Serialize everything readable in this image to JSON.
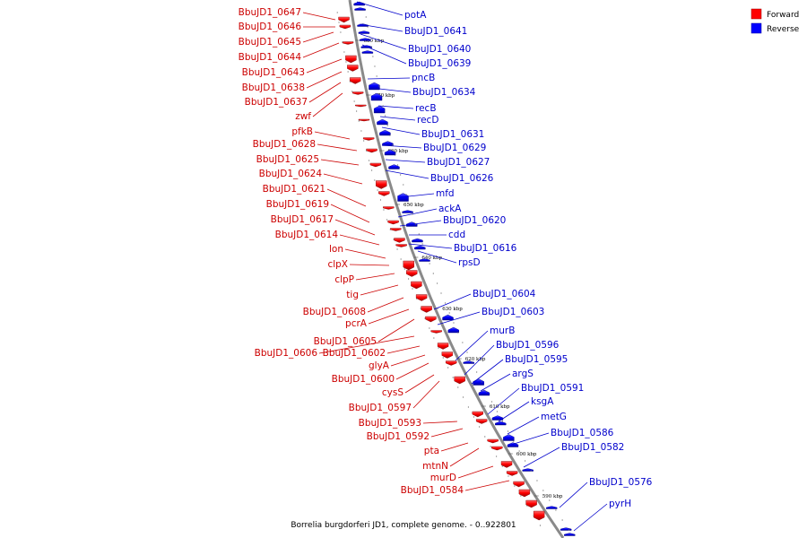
{
  "caption": "Borrelia burgdorferi JD1, complete genome. - 0..922801",
  "legend": [
    {
      "label": "Forward",
      "color": "#ff0000"
    },
    {
      "label": "Reverse",
      "color": "#0000ff"
    }
  ],
  "colors": {
    "forward": "#cc0000",
    "reverse": "#0000cc",
    "backbone": "#808080"
  },
  "ticks": [
    "680 kbp",
    "670 kbp",
    "660 kbp",
    "650 kbp",
    "640 kbp",
    "630 kbp",
    "620 kbp",
    "610 kbp",
    "600 kbp",
    "590 kbp"
  ],
  "forward_genes": [
    "BbuJD1_0647",
    "BbuJD1_0646",
    "BbuJD1_0645",
    "BbuJD1_0644",
    "BbuJD1_0643",
    "BbuJD1_0638",
    "BbuJD1_0637",
    "zwf",
    "pfkB",
    "BbuJD1_0628",
    "BbuJD1_0625",
    "BbuJD1_0624",
    "BbuJD1_0621",
    "BbuJD1_0619",
    "BbuJD1_0617",
    "BbuJD1_0614",
    "lon",
    "clpX",
    "clpP",
    "tig",
    "BbuJD1_0608",
    "pcrA",
    "BbuJD1_0605",
    "BbuJD1_0606",
    "BbuJD1_0602",
    "glyA",
    "BbuJD1_0600",
    "cysS",
    "BbuJD1_0597",
    "BbuJD1_0593",
    "BbuJD1_0592",
    "pta",
    "mtnN",
    "murD",
    "BbuJD1_0584"
  ],
  "reverse_genes": [
    "potA",
    "BbuJD1_0641",
    "BbuJD1_0640",
    "BbuJD1_0639",
    "pncB",
    "BbuJD1_0634",
    "recB",
    "recD",
    "BbuJD1_0631",
    "BbuJD1_0629",
    "BbuJD1_0627",
    "BbuJD1_0626",
    "mfd",
    "ackA",
    "BbuJD1_0620",
    "cdd",
    "BbuJD1_0616",
    "rpsD",
    "BbuJD1_0604",
    "BbuJD1_0603",
    "murB",
    "BbuJD1_0596",
    "BbuJD1_0595",
    "argS",
    "BbuJD1_0591",
    "ksgA",
    "metG",
    "BbuJD1_0586",
    "BbuJD1_0582",
    "BbuJD1_0576",
    "pyrH"
  ]
}
